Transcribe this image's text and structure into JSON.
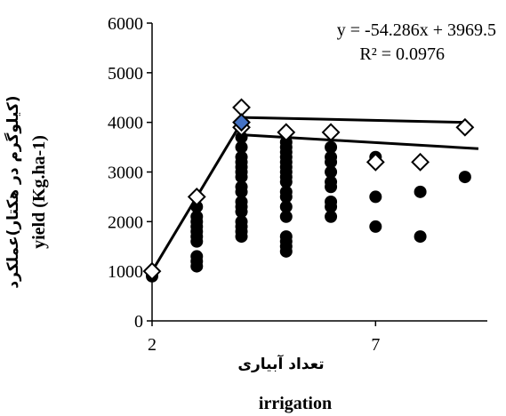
{
  "chart_data": {
    "type": "scatter",
    "title": "",
    "xlabel": "تعداد آبیاری",
    "xlabel_en": "irrigation",
    "ylabel": "(کیلوگرم در هکتار)عملکرد",
    "ylabel_en": "yield (Kg.ha-1)",
    "xlim": [
      2,
      9.5
    ],
    "ylim": [
      0,
      6000
    ],
    "x_ticks": [
      {
        "value": 2,
        "label": "2"
      },
      {
        "value": 7,
        "label": "7"
      }
    ],
    "y_ticks": [
      {
        "value": 0,
        "label": "0"
      },
      {
        "value": 1000,
        "label": "1000"
      },
      {
        "value": 2000,
        "label": "2000"
      },
      {
        "value": 3000,
        "label": "3000"
      },
      {
        "value": 4000,
        "label": "4000"
      },
      {
        "value": 5000,
        "label": "5000"
      },
      {
        "value": 6000,
        "label": "6000"
      }
    ],
    "grid": false,
    "legend": "none",
    "annotations": {
      "equation": "y = -54.286x + 3969.5",
      "r_squared": "R² = 0.0976"
    },
    "series": [
      {
        "marker": "filled-circle",
        "color": "#000000",
        "points": [
          {
            "x": 2,
            "y": 900
          },
          {
            "x": 3,
            "y": 1100
          },
          {
            "x": 3,
            "y": 1200
          },
          {
            "x": 3,
            "y": 1300
          },
          {
            "x": 3,
            "y": 1600
          },
          {
            "x": 3,
            "y": 1700
          },
          {
            "x": 3,
            "y": 1800
          },
          {
            "x": 3,
            "y": 1900
          },
          {
            "x": 3,
            "y": 2000
          },
          {
            "x": 3,
            "y": 2100
          },
          {
            "x": 3,
            "y": 2300
          },
          {
            "x": 4,
            "y": 1700
          },
          {
            "x": 4,
            "y": 1800
          },
          {
            "x": 4,
            "y": 1900
          },
          {
            "x": 4,
            "y": 2000
          },
          {
            "x": 4,
            "y": 2200
          },
          {
            "x": 4,
            "y": 2300
          },
          {
            "x": 4,
            "y": 2400
          },
          {
            "x": 4,
            "y": 2600
          },
          {
            "x": 4,
            "y": 2700
          },
          {
            "x": 4,
            "y": 2900
          },
          {
            "x": 4,
            "y": 3000
          },
          {
            "x": 4,
            "y": 3100
          },
          {
            "x": 4,
            "y": 3200
          },
          {
            "x": 4,
            "y": 3300
          },
          {
            "x": 4,
            "y": 3500
          },
          {
            "x": 4,
            "y": 3700
          },
          {
            "x": 5,
            "y": 1400
          },
          {
            "x": 5,
            "y": 1500
          },
          {
            "x": 5,
            "y": 1600
          },
          {
            "x": 5,
            "y": 1700
          },
          {
            "x": 5,
            "y": 2100
          },
          {
            "x": 5,
            "y": 2300
          },
          {
            "x": 5,
            "y": 2500
          },
          {
            "x": 5,
            "y": 2600
          },
          {
            "x": 5,
            "y": 2800
          },
          {
            "x": 5,
            "y": 2900
          },
          {
            "x": 5,
            "y": 3000
          },
          {
            "x": 5,
            "y": 3100
          },
          {
            "x": 5,
            "y": 3200
          },
          {
            "x": 5,
            "y": 3300
          },
          {
            "x": 5,
            "y": 3400
          },
          {
            "x": 5,
            "y": 3500
          },
          {
            "x": 5,
            "y": 3600
          },
          {
            "x": 6,
            "y": 2100
          },
          {
            "x": 6,
            "y": 2300
          },
          {
            "x": 6,
            "y": 2400
          },
          {
            "x": 6,
            "y": 2700
          },
          {
            "x": 6,
            "y": 2800
          },
          {
            "x": 6,
            "y": 3000
          },
          {
            "x": 6,
            "y": 3200
          },
          {
            "x": 6,
            "y": 3300
          },
          {
            "x": 6,
            "y": 3500
          },
          {
            "x": 7,
            "y": 1900
          },
          {
            "x": 7,
            "y": 2500
          },
          {
            "x": 7,
            "y": 3300
          },
          {
            "x": 8,
            "y": 1700
          },
          {
            "x": 8,
            "y": 2600
          },
          {
            "x": 9,
            "y": 2900
          }
        ]
      },
      {
        "marker": "open-diamond",
        "color": "#000000",
        "points": [
          {
            "x": 2,
            "y": 1000
          },
          {
            "x": 3,
            "y": 2500
          },
          {
            "x": 4,
            "y": 4300
          },
          {
            "x": 4,
            "y": 3900
          },
          {
            "x": 5,
            "y": 3800
          },
          {
            "x": 6,
            "y": 3800
          },
          {
            "x": 7,
            "y": 3200
          },
          {
            "x": 8,
            "y": 3200
          },
          {
            "x": 9,
            "y": 3900
          }
        ]
      },
      {
        "marker": "filled-diamond",
        "color": "#4472C4",
        "points": [
          {
            "x": 4,
            "y": 4000
          }
        ]
      }
    ],
    "lines": [
      {
        "kind": "boundary-rising",
        "points": [
          {
            "x": 2,
            "y": 1000
          },
          {
            "x": 4,
            "y": 4000
          }
        ]
      },
      {
        "kind": "boundary-plateau",
        "points": [
          {
            "x": 4,
            "y": 4100
          },
          {
            "x": 9,
            "y": 4000
          }
        ]
      },
      {
        "kind": "linear-fit",
        "points": [
          {
            "x": 4,
            "y": 3750
          },
          {
            "x": 9.3,
            "y": 3470
          }
        ]
      }
    ]
  }
}
